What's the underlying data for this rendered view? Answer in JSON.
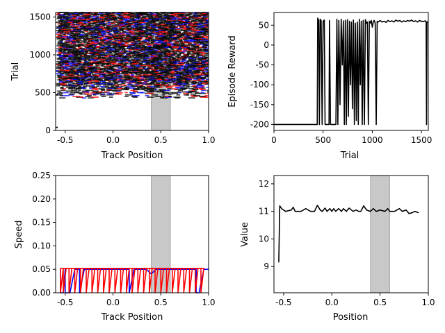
{
  "chart_data": [
    {
      "id": "raster",
      "type": "scatter",
      "xlabel": "Track Position",
      "ylabel": "Trial",
      "xlim": [
        -0.6,
        1.0
      ],
      "ylim": [
        0,
        1560
      ],
      "xticks": [
        "-0.5",
        "0.0",
        "0.5",
        "1.0"
      ],
      "yticks": [
        "0",
        "500",
        "1000",
        "1500"
      ],
      "shaded_region": [
        0.4,
        0.6
      ],
      "marker": "horizontal-dash",
      "marker_colors": [
        "#000000",
        "#0000ff",
        "#ff0000"
      ],
      "trial_range_with_marks": [
        430,
        1560
      ],
      "early_trial_marks": [
        {
          "x": -0.6,
          "y": 40
        },
        {
          "x": -0.6,
          "y": 470
        }
      ]
    },
    {
      "id": "reward",
      "type": "line",
      "xlabel": "Trial",
      "ylabel": "Episode Reward",
      "xlim": [
        0,
        1570
      ],
      "ylim": [
        -215,
        82
      ],
      "xticks": [
        "0",
        "500",
        "1000",
        "1500"
      ],
      "yticks": [
        "-200",
        "-150",
        "-100",
        "-50",
        "0",
        "50"
      ],
      "color": "#000000",
      "points": [
        [
          0,
          -200
        ],
        [
          430,
          -200
        ],
        [
          440,
          -200
        ],
        [
          445,
          68
        ],
        [
          455,
          62
        ],
        [
          462,
          -200
        ],
        [
          470,
          65
        ],
        [
          480,
          62
        ],
        [
          490,
          -200
        ],
        [
          500,
          60
        ],
        [
          512,
          63
        ],
        [
          520,
          -200
        ],
        [
          560,
          -200
        ],
        [
          565,
          62
        ],
        [
          575,
          -200
        ],
        [
          600,
          -200
        ],
        [
          630,
          -200
        ],
        [
          640,
          65
        ],
        [
          650,
          -200
        ],
        [
          660,
          62
        ],
        [
          672,
          -150
        ],
        [
          684,
          65
        ],
        [
          695,
          -50
        ],
        [
          706,
          61
        ],
        [
          716,
          -200
        ],
        [
          726,
          62
        ],
        [
          736,
          -200
        ],
        [
          747,
          64
        ],
        [
          757,
          -180
        ],
        [
          768,
          60
        ],
        [
          778,
          -100
        ],
        [
          788,
          58
        ],
        [
          798,
          -160
        ],
        [
          808,
          63
        ],
        [
          818,
          -200
        ],
        [
          828,
          55
        ],
        [
          838,
          -190
        ],
        [
          848,
          58
        ],
        [
          858,
          -200
        ],
        [
          868,
          65
        ],
        [
          878,
          -100
        ],
        [
          888,
          60
        ],
        [
          898,
          -200
        ],
        [
          908,
          62
        ],
        [
          920,
          -200
        ],
        [
          930,
          64
        ],
        [
          940,
          55
        ],
        [
          950,
          58
        ],
        [
          960,
          -200
        ],
        [
          970,
          60
        ],
        [
          980,
          55
        ],
        [
          990,
          62
        ],
        [
          1000,
          45
        ],
        [
          1010,
          58
        ],
        [
          1020,
          62
        ],
        [
          1030,
          55
        ],
        [
          1040,
          -200
        ],
        [
          1050,
          60
        ],
        [
          1060,
          58
        ],
        [
          1080,
          62
        ],
        [
          1100,
          58
        ],
        [
          1120,
          60
        ],
        [
          1140,
          57
        ],
        [
          1160,
          62
        ],
        [
          1180,
          59
        ],
        [
          1200,
          61
        ],
        [
          1220,
          58
        ],
        [
          1240,
          63
        ],
        [
          1260,
          60
        ],
        [
          1280,
          62
        ],
        [
          1300,
          58
        ],
        [
          1320,
          61
        ],
        [
          1340,
          59
        ],
        [
          1360,
          62
        ],
        [
          1380,
          60
        ],
        [
          1400,
          63
        ],
        [
          1420,
          59
        ],
        [
          1440,
          61
        ],
        [
          1460,
          58
        ],
        [
          1480,
          62
        ],
        [
          1500,
          60
        ],
        [
          1520,
          59
        ],
        [
          1540,
          61
        ],
        [
          1548,
          58
        ],
        [
          1552,
          -200
        ],
        [
          1556,
          55
        ],
        [
          1560,
          60
        ]
      ]
    },
    {
      "id": "speed",
      "type": "line",
      "xlabel": "Track Position",
      "ylabel": "Speed",
      "xlim": [
        -0.6,
        1.0
      ],
      "ylim": [
        0,
        0.25
      ],
      "xticks": [
        "-0.5",
        "0.0",
        "0.5",
        "1.0"
      ],
      "yticks": [
        "0.00",
        "0.05",
        "0.10",
        "0.15",
        "0.20",
        "0.25"
      ],
      "shaded_region": [
        0.4,
        0.6
      ],
      "series": [
        {
          "color": "#0000ff",
          "points": [
            [
              -0.55,
              0.05
            ],
            [
              -0.55,
              0.0
            ],
            [
              -0.52,
              0.0
            ],
            [
              -0.5,
              0.05
            ],
            [
              -0.5,
              0.0
            ],
            [
              -0.45,
              0.0
            ],
            [
              -0.4,
              0.05
            ],
            [
              -0.35,
              0.05
            ],
            [
              -0.35,
              0.0
            ],
            [
              -0.3,
              0.05
            ],
            [
              0.17,
              0.05
            ],
            [
              0.17,
              0.0
            ],
            [
              0.22,
              0.05
            ],
            [
              0.35,
              0.05
            ],
            [
              0.4,
              0.04
            ],
            [
              0.45,
              0.05
            ],
            [
              0.87,
              0.05
            ],
            [
              0.87,
              0.0
            ],
            [
              0.9,
              0.0
            ],
            [
              0.95,
              0.05
            ],
            [
              1.0,
              0.05
            ]
          ]
        },
        {
          "color": "#ff0000",
          "sawtooth": {
            "x_start": -0.55,
            "x_end": 0.9,
            "low": 0.0,
            "high": 0.052,
            "period": 0.06
          }
        }
      ]
    },
    {
      "id": "value",
      "type": "line",
      "xlabel": "Position",
      "ylabel": "Value",
      "xlim": [
        -0.6,
        1.0
      ],
      "ylim": [
        8.05,
        12.3
      ],
      "xticks": [
        "-0.5",
        "0.0",
        "0.5",
        "1.0"
      ],
      "yticks": [
        "9",
        "10",
        "11",
        "12"
      ],
      "shaded_region": [
        0.4,
        0.6
      ],
      "color": "#000000",
      "points": [
        [
          -0.55,
          9.15
        ],
        [
          -0.54,
          11.2
        ],
        [
          -0.52,
          11.1
        ],
        [
          -0.48,
          11.0
        ],
        [
          -0.42,
          11.05
        ],
        [
          -0.4,
          11.15
        ],
        [
          -0.38,
          11.0
        ],
        [
          -0.32,
          11.0
        ],
        [
          -0.27,
          11.1
        ],
        [
          -0.22,
          11.0
        ],
        [
          -0.18,
          11.0
        ],
        [
          -0.15,
          11.22
        ],
        [
          -0.12,
          11.05
        ],
        [
          -0.1,
          11.0
        ],
        [
          -0.07,
          11.12
        ],
        [
          -0.05,
          11.0
        ],
        [
          -0.02,
          11.1
        ],
        [
          0.0,
          11.0
        ],
        [
          0.02,
          11.1
        ],
        [
          0.04,
          11.0
        ],
        [
          0.07,
          11.1
        ],
        [
          0.1,
          11.0
        ],
        [
          0.12,
          11.1
        ],
        [
          0.15,
          11.0
        ],
        [
          0.18,
          11.12
        ],
        [
          0.22,
          11.0
        ],
        [
          0.25,
          11.05
        ],
        [
          0.28,
          11.0
        ],
        [
          0.3,
          11.0
        ],
        [
          0.33,
          11.2
        ],
        [
          0.36,
          11.05
        ],
        [
          0.4,
          11.0
        ],
        [
          0.43,
          11.1
        ],
        [
          0.46,
          11.0
        ],
        [
          0.5,
          11.05
        ],
        [
          0.55,
          11.0
        ],
        [
          0.58,
          11.1
        ],
        [
          0.6,
          11.0
        ],
        [
          0.65,
          11.0
        ],
        [
          0.7,
          11.1
        ],
        [
          0.73,
          11.0
        ],
        [
          0.77,
          11.05
        ],
        [
          0.8,
          10.92
        ],
        [
          0.83,
          10.95
        ],
        [
          0.86,
          11.0
        ],
        [
          0.9,
          10.95
        ]
      ]
    }
  ]
}
